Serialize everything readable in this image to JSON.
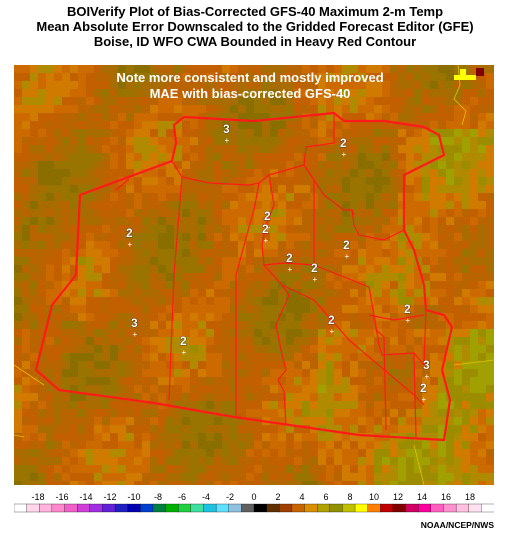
{
  "title": {
    "line1": "BOIVerify Plot of Bias-Corrected GFS-40 Maximum 2-m Temp",
    "line2": "Mean Absolute Error Downscaled to the Gridded Forecast Editor (GFE)",
    "line3": "Boise, ID WFO CWA Bounded in Heavy Red Contour"
  },
  "annotation": {
    "line1": "Note more consistent  and mostly improved",
    "line2": "MAE with bias-corrected GFS-40"
  },
  "zone_values": [
    {
      "label": "3"
    },
    {
      "label": "2"
    },
    {
      "label": "2"
    },
    {
      "label": "2"
    },
    {
      "label": "2"
    },
    {
      "label": "2"
    },
    {
      "label": "2"
    },
    {
      "label": "2"
    },
    {
      "label": "3"
    },
    {
      "label": "2"
    },
    {
      "label": "2"
    },
    {
      "label": "3"
    },
    {
      "label": "2"
    },
    {
      "label": "2"
    }
  ],
  "legend": {
    "ticks": [
      "-18",
      "-16",
      "-14",
      "-12",
      "-10",
      "-8",
      "-6",
      "-4",
      "-2",
      "0",
      "2",
      "4",
      "6",
      "8",
      "10",
      "12",
      "14",
      "16",
      "18"
    ],
    "colors": [
      "#ffffff",
      "#ffd6ec",
      "#ffb3dd",
      "#ff88cc",
      "#f060c8",
      "#d040d8",
      "#a030e0",
      "#6020d8",
      "#2020c0",
      "#0000b0",
      "#0040d0",
      "#008040",
      "#00b000",
      "#20d040",
      "#40e0a0",
      "#20c0e0",
      "#60e0ff",
      "#90c0e0",
      "#606060",
      "#000000",
      "#603000",
      "#a04000",
      "#c86400",
      "#d89000",
      "#b0a000",
      "#909000",
      "#c0c000",
      "#ffff00",
      "#ff8000",
      "#c00000",
      "#800000",
      "#d00060",
      "#ff00a0",
      "#ff60c0",
      "#ff90d0",
      "#ffc0e0",
      "#ffe0f0",
      "#ffffff"
    ]
  },
  "credit": "NOAA/NCEP/NWS"
}
